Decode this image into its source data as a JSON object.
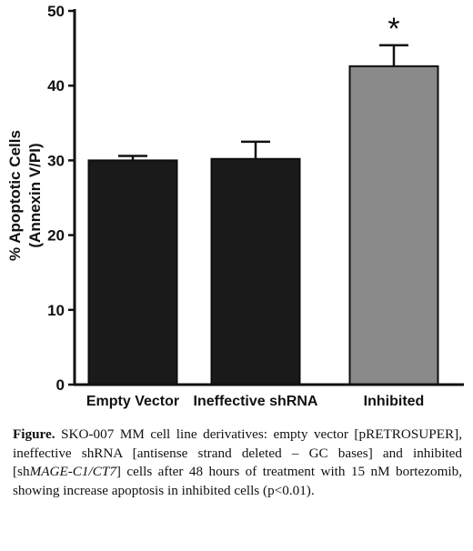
{
  "chart_data": {
    "type": "bar",
    "ylabel_line1": "% Apoptotic Cells",
    "ylabel_line2": "(Annexin V/PI)",
    "ylim": [
      0,
      50
    ],
    "yticks": [
      "0",
      "10",
      "20",
      "30",
      "40",
      "50"
    ],
    "ytick_values": [
      0,
      10,
      20,
      30,
      40,
      50
    ],
    "categories": [
      "Empty Vector",
      "Ineffective shRNA",
      "Inhibited"
    ],
    "values": [
      30.0,
      30.2,
      42.6
    ],
    "errors": [
      0.6,
      2.3,
      2.8
    ],
    "colors": [
      "#1a1a1a",
      "#1a1a1a",
      "#8a8a8a"
    ],
    "annotations": [
      {
        "category": "Inhibited",
        "text": "*"
      }
    ],
    "grid": false,
    "legend": "none"
  },
  "caption": {
    "label": "Figure.",
    "part1": " SKO-007 MM cell line derivatives: empty vector [pRETROSUPER], ineffective shRNA [antisense strand deleted – GC bases] and inhibited [sh",
    "italic": "MAGE-C1/CT7",
    "part2": "] cells after 48 hours of treatment with 15 nM bortezomib, showing increase apoptosis in inhibited cells (p<0.01)."
  }
}
